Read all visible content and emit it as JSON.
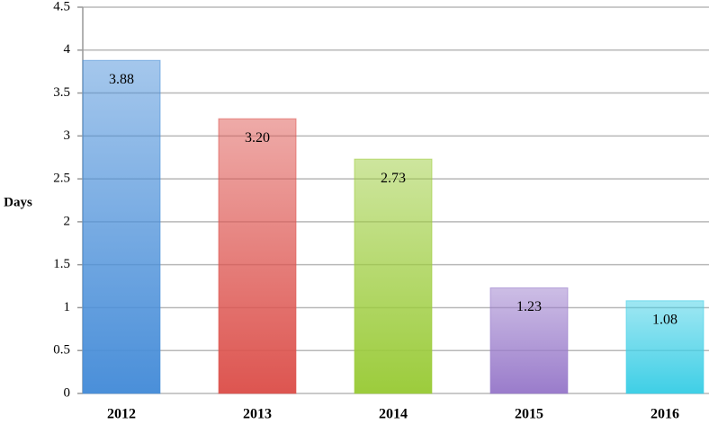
{
  "chart_data": {
    "type": "bar",
    "y_label": "Days",
    "categories": [
      "2012",
      "2013",
      "2014",
      "2015",
      "2016"
    ],
    "values": [
      3.88,
      3.2,
      2.73,
      1.23,
      1.08
    ],
    "value_labels": [
      "3.88",
      "3.20",
      "2.73",
      "1.23",
      "1.08"
    ],
    "colors": [
      "#4a8fd9",
      "#dd5550",
      "#9ccc3c",
      "#9a7ccb",
      "#3fcfe6"
    ],
    "ylim": [
      0,
      4.5
    ],
    "yticks": [
      0,
      0.5,
      1,
      1.5,
      2,
      2.5,
      3,
      3.5,
      4,
      4.5
    ],
    "grid": true
  }
}
